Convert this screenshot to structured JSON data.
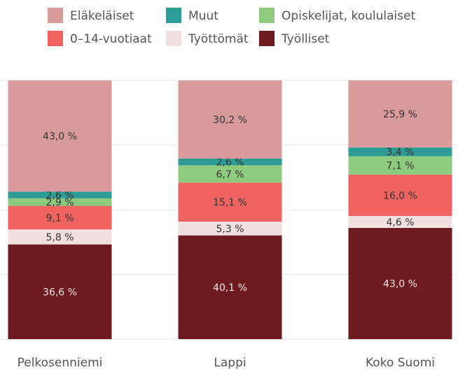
{
  "chart_data": {
    "type": "stacked_bar",
    "categories": [
      "Pelkosenniemi",
      "Lappi",
      "Koko Suomi"
    ],
    "series": [
      {
        "name": "Eläkeläiset",
        "color": "#d99a9b",
        "values": [
          43.0,
          30.2,
          25.9
        ],
        "value_labels": [
          "43,0 %",
          "30,2 %",
          "25,9 %"
        ]
      },
      {
        "name": "Muut",
        "color": "#2e9c96",
        "values": [
          2.6,
          2.6,
          3.4
        ],
        "value_labels": [
          "2,6 %",
          "2,6 %",
          "3,4 %"
        ]
      },
      {
        "name": "Opiskelijat, koululaiset",
        "color": "#8fcb7e",
        "values": [
          2.9,
          6.7,
          7.1
        ],
        "value_labels": [
          "2,9 %",
          "6,7 %",
          "7,1 %"
        ]
      },
      {
        "name": "0–14-vuotiaat",
        "color": "#ef6461",
        "values": [
          9.1,
          15.1,
          16.0
        ],
        "value_labels": [
          "9,1 %",
          "15,1 %",
          "16,0 %"
        ]
      },
      {
        "name": "Työttömät",
        "color": "#f2dfdf",
        "values": [
          5.8,
          5.3,
          4.6
        ],
        "value_labels": [
          "5,8 %",
          "5,3 %",
          "4,6 %"
        ]
      },
      {
        "name": "Työlliset",
        "color": "#6e1b1f",
        "values": [
          36.6,
          40.1,
          43.0
        ],
        "value_labels": [
          "36,6 %",
          "40,1 %",
          "43,0 %"
        ]
      }
    ],
    "ylim": [
      0,
      100
    ],
    "yticks": [
      0,
      25,
      50,
      75,
      100
    ],
    "grid": true
  }
}
